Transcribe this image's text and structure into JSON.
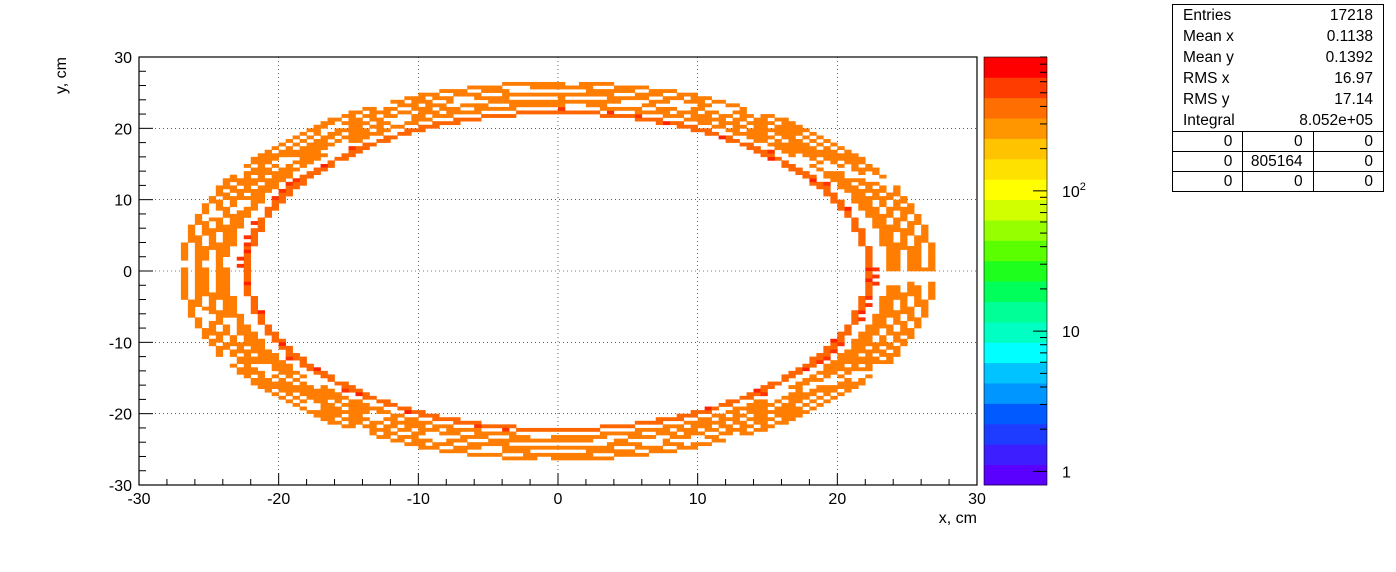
{
  "chart_data": {
    "type": "heatmap",
    "title": "",
    "xlabel": "x, cm",
    "ylabel": "y, cm",
    "xlim": [
      -30,
      30
    ],
    "ylim": [
      -30,
      30
    ],
    "x_ticks": [
      "-30",
      "-20",
      "-10",
      "0",
      "10",
      "20",
      "30"
    ],
    "y_ticks": [
      "-30",
      "-20",
      "-10",
      "0",
      "10",
      "20",
      "30"
    ],
    "grid": true,
    "colorbar": {
      "scale": "log",
      "ticks": [
        {
          "value": 1,
          "label": "1"
        },
        {
          "value": 10,
          "label": "10"
        },
        {
          "value": 100,
          "label": "10",
          "exponent": "2"
        }
      ],
      "range": [
        0.8,
        900
      ]
    },
    "rings": [
      {
        "rx": 22.3,
        "ry": 22.2,
        "count": 180,
        "color": "#ff6600"
      },
      {
        "rx": 22.6,
        "ry": 22.5,
        "count": 120,
        "color": "#ff3300"
      },
      {
        "rx": 23.8,
        "ry": 23.2,
        "count": 100,
        "color": "#ff7d00"
      },
      {
        "rx": 24.3,
        "ry": 24.0,
        "count": 100,
        "color": "#ff7d00"
      },
      {
        "rx": 25.2,
        "ry": 24.8,
        "count": 100,
        "color": "#ff7d00"
      },
      {
        "rx": 26.0,
        "ry": 25.6,
        "count": 100,
        "color": "#ff7d00"
      },
      {
        "rx": 26.8,
        "ry": 26.3,
        "count": 100,
        "color": "#ff7d00"
      }
    ],
    "bin_size": 0.5
  },
  "stats": {
    "rows": [
      {
        "label": "Entries",
        "value": "17218"
      },
      {
        "label": "Mean x",
        "value": "0.1138"
      },
      {
        "label": "Mean y",
        "value": "0.1392"
      },
      {
        "label": "RMS x",
        "value": "16.97"
      },
      {
        "label": "RMS y",
        "value": "17.14"
      },
      {
        "label": "Integral",
        "value": "8.052e+05"
      }
    ],
    "grid": [
      [
        "0",
        "0",
        "0"
      ],
      [
        "0",
        "805164",
        "0"
      ],
      [
        "0",
        "0",
        "0"
      ]
    ]
  },
  "palette": [
    "#5a00ff",
    "#3c1eff",
    "#1e3cff",
    "#005aff",
    "#0096ff",
    "#00c3ff",
    "#00ffff",
    "#00ffc3",
    "#00ff96",
    "#00ff5a",
    "#1eff1e",
    "#5aff00",
    "#96ff00",
    "#d2ff00",
    "#ffff00",
    "#ffe100",
    "#ffc300",
    "#ff9600",
    "#ff6e00",
    "#ff3c00",
    "#ff0000"
  ]
}
